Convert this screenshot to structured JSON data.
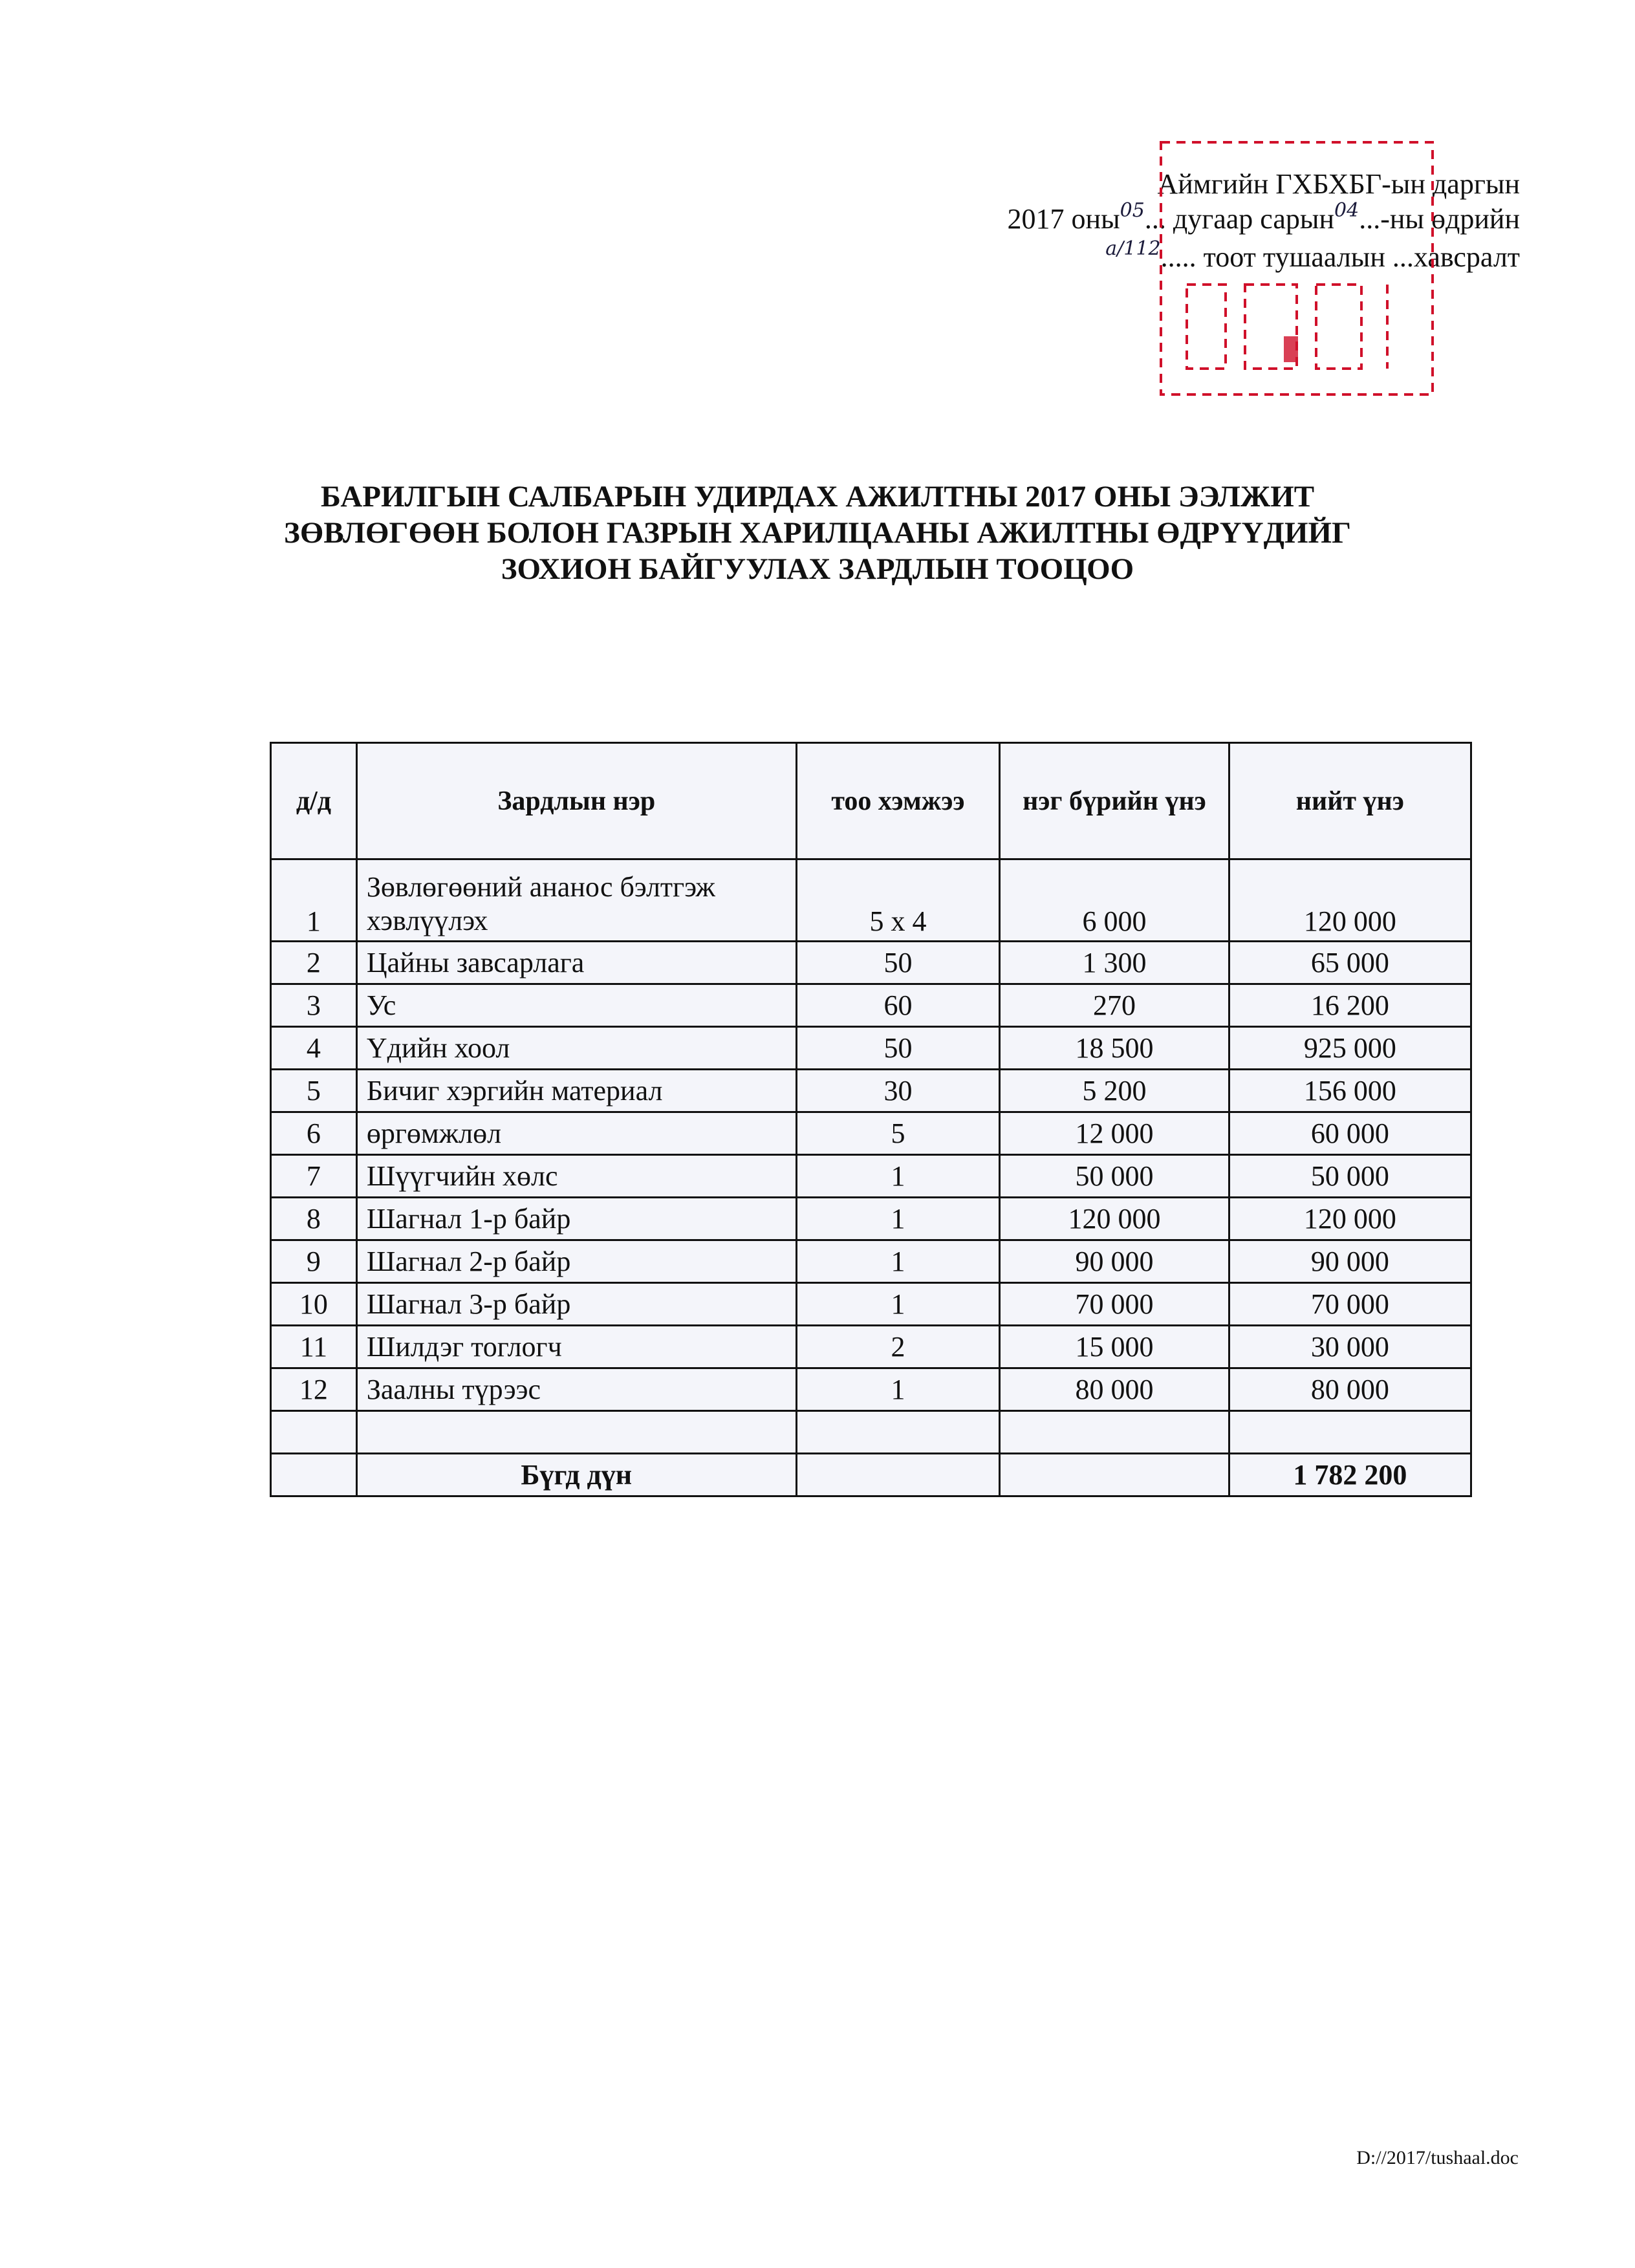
{
  "header": {
    "line1": "Аймгийн ГХБХБГ-ын даргын",
    "line2_a": "2017 оны",
    "line2_month": "05",
    "line2_b": "... дугаар сарын",
    "line2_day": "04",
    "line2_c": "...-ны өдрийн",
    "line3_number": "а/112",
    "line3": "..... тоот тушаалын ...хавсралт"
  },
  "stamp_color": "#d0102a",
  "title": {
    "line1": "БАРИЛГЫН САЛБАРЫН УДИРДАХ АЖИЛТНЫ 2017 ОНЫ ЭЭЛЖИТ",
    "line2": "ЗӨВЛӨГӨӨН БОЛОН ГАЗРЫН ХАРИЛЦААНЫ АЖИЛТНЫ ӨДРҮҮДИЙГ",
    "line3": "ЗОХИОН БАЙГУУЛАХ ЗАРДЛЫН ТООЦОО"
  },
  "table": {
    "headers": [
      "д/д",
      "Зардлын нэр",
      "тоо хэмжээ",
      "нэг бүрийн үнэ",
      "нийт үнэ"
    ],
    "rows": [
      {
        "n": "1",
        "name": "Зөвлөгөөний ананос бэлтгэж хэвлүүлэх",
        "qty": "5 x 4",
        "unit": "6 000",
        "total": "120 000"
      },
      {
        "n": "2",
        "name": "Цайны завсарлага",
        "qty": "50",
        "unit": "1 300",
        "total": "65 000"
      },
      {
        "n": "3",
        "name": "Ус",
        "qty": "60",
        "unit": "270",
        "total": "16 200"
      },
      {
        "n": "4",
        "name": "Үдийн хоол",
        "qty": "50",
        "unit": "18 500",
        "total": "925 000"
      },
      {
        "n": "5",
        "name": "Бичиг хэргийн материал",
        "qty": "30",
        "unit": "5 200",
        "total": "156 000"
      },
      {
        "n": "6",
        "name": "өргөмжлөл",
        "qty": "5",
        "unit": "12 000",
        "total": "60 000"
      },
      {
        "n": "7",
        "name": "Шүүгчийн хөлс",
        "qty": "1",
        "unit": "50 000",
        "total": "50 000"
      },
      {
        "n": "8",
        "name": "Шагнал 1-р байр",
        "qty": "1",
        "unit": "120 000",
        "total": "120 000"
      },
      {
        "n": "9",
        "name": "Шагнал 2-р байр",
        "qty": "1",
        "unit": "90 000",
        "total": "90 000"
      },
      {
        "n": "10",
        "name": "Шагнал 3-р байр",
        "qty": "1",
        "unit": "70 000",
        "total": "70 000"
      },
      {
        "n": "11",
        "name": "Шилдэг тоглогч",
        "qty": "2",
        "unit": "15 000",
        "total": "30 000"
      },
      {
        "n": "12",
        "name": "Заалны түрээс",
        "qty": "1",
        "unit": "80 000",
        "total": "80 000"
      }
    ],
    "total_label": "Бүгд дүн",
    "total_value": "1 782 200"
  },
  "footer": "D://2017/tushaal.doc"
}
